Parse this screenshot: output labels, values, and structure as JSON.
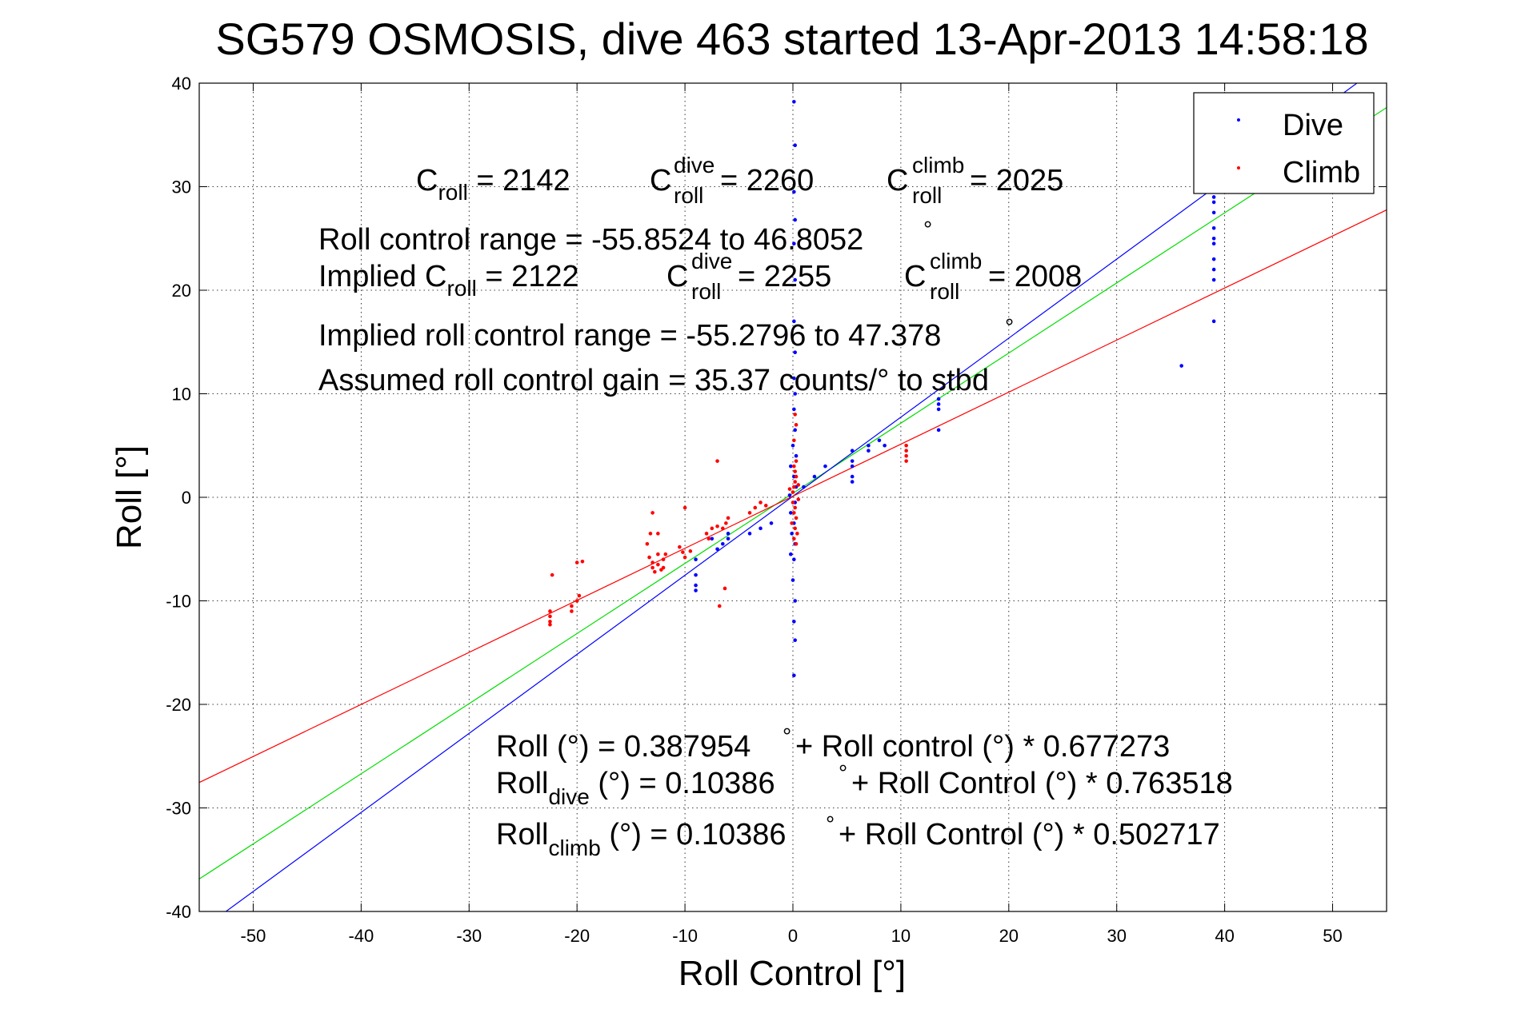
{
  "chart_data": {
    "type": "scatter",
    "title": "SG579 OSMOSIS, dive 463 started 13-Apr-2013 14:58:18",
    "xlabel": "Roll Control [°]",
    "ylabel": "Roll [°]",
    "xlim": [
      -55,
      55
    ],
    "ylim": [
      -40,
      40
    ],
    "xticks": [
      -50,
      -40,
      -30,
      -20,
      -10,
      0,
      10,
      20,
      30,
      40,
      50
    ],
    "yticks": [
      -40,
      -30,
      -20,
      -10,
      0,
      10,
      20,
      30,
      40
    ],
    "grid": true,
    "legend": {
      "position": "top-right",
      "entries": [
        "Dive",
        "Climb"
      ]
    },
    "colors": {
      "dive": "#0000ff",
      "climb": "#ff0000",
      "fit_all": "#00dd00"
    },
    "series": [
      {
        "name": "Dive",
        "color": "#0000ff",
        "points": [
          [
            0.1,
            38.2
          ],
          [
            0.2,
            34.0
          ],
          [
            0.1,
            29.5
          ],
          [
            0.2,
            26.8
          ],
          [
            0.1,
            24.5
          ],
          [
            0.2,
            21.0
          ],
          [
            0.1,
            17.0
          ],
          [
            0.2,
            14.0
          ],
          [
            0.1,
            11.5
          ],
          [
            0.2,
            10.0
          ],
          [
            0.1,
            8.5
          ],
          [
            0.2,
            6.5
          ],
          [
            0.0,
            5.0
          ],
          [
            0.3,
            4.0
          ],
          [
            -0.2,
            3.0
          ],
          [
            0.1,
            2.0
          ],
          [
            0.3,
            1.0
          ],
          [
            -0.3,
            0.2
          ],
          [
            0.2,
            -0.5
          ],
          [
            -0.2,
            -1.5
          ],
          [
            0.1,
            -2.5
          ],
          [
            -0.1,
            -3.5
          ],
          [
            0.2,
            -4.5
          ],
          [
            -0.2,
            -5.5
          ],
          [
            0.1,
            -6.0
          ],
          [
            0.0,
            -8.0
          ],
          [
            0.2,
            -10.0
          ],
          [
            0.1,
            -12.0
          ],
          [
            0.2,
            -13.8
          ],
          [
            0.1,
            -17.2
          ],
          [
            -9.0,
            -6.0
          ],
          [
            -9.0,
            -7.5
          ],
          [
            -9.0,
            -8.5
          ],
          [
            -9.0,
            -9.0
          ],
          [
            -7.5,
            -4.0
          ],
          [
            -7.0,
            -5.0
          ],
          [
            -6.5,
            -4.5
          ],
          [
            -6.0,
            -3.5
          ],
          [
            -6.0,
            -4.0
          ],
          [
            -4.0,
            -3.5
          ],
          [
            -3.0,
            -3.0
          ],
          [
            -2.0,
            -2.5
          ],
          [
            1.0,
            1.0
          ],
          [
            2.0,
            2.0
          ],
          [
            3.0,
            3.0
          ],
          [
            5.5,
            3.5
          ],
          [
            5.5,
            4.5
          ],
          [
            5.5,
            2.0
          ],
          [
            5.5,
            3.0
          ],
          [
            5.5,
            1.5
          ],
          [
            7.0,
            4.5
          ],
          [
            7.0,
            5.0
          ],
          [
            8.0,
            5.5
          ],
          [
            8.5,
            5.0
          ],
          [
            13.5,
            8.5
          ],
          [
            13.5,
            9.0
          ],
          [
            13.5,
            9.5
          ],
          [
            13.5,
            6.5
          ],
          [
            36.0,
            12.7
          ],
          [
            39.0,
            17.0
          ],
          [
            39.0,
            21.0
          ],
          [
            39.0,
            22.0
          ],
          [
            39.0,
            23.0
          ],
          [
            39.0,
            24.5
          ],
          [
            39.0,
            25.0
          ],
          [
            39.0,
            26.0
          ],
          [
            39.0,
            27.5
          ],
          [
            39.0,
            28.5
          ],
          [
            39.0,
            29.0
          ],
          [
            39.0,
            31.0
          ]
        ]
      },
      {
        "name": "Climb",
        "color": "#ff0000",
        "points": [
          [
            -22.5,
            -11.0
          ],
          [
            -22.5,
            -11.5
          ],
          [
            -22.5,
            -12.0
          ],
          [
            -22.5,
            -12.3
          ],
          [
            -22.3,
            -7.5
          ],
          [
            -20.5,
            -10.5
          ],
          [
            -20.5,
            -11.0
          ],
          [
            -20.0,
            -10.0
          ],
          [
            -19.8,
            -9.5
          ],
          [
            -20.0,
            -6.3
          ],
          [
            -19.5,
            -6.2
          ],
          [
            -13.3,
            -5.8
          ],
          [
            -13.0,
            -6.3
          ],
          [
            -13.0,
            -6.8
          ],
          [
            -12.8,
            -7.2
          ],
          [
            -12.5,
            -5.5
          ],
          [
            -12.5,
            -6.5
          ],
          [
            -12.2,
            -7.0
          ],
          [
            -12.0,
            -6.0
          ],
          [
            -12.0,
            -6.8
          ],
          [
            -11.8,
            -5.5
          ],
          [
            -13.5,
            -4.5
          ],
          [
            -13.2,
            -3.5
          ],
          [
            -12.5,
            -3.5
          ],
          [
            -13.0,
            -1.5
          ],
          [
            -10.5,
            -4.8
          ],
          [
            -10.2,
            -5.3
          ],
          [
            -10.0,
            -5.8
          ],
          [
            -9.5,
            -5.2
          ],
          [
            -10.0,
            -1.0
          ],
          [
            -8.0,
            -3.5
          ],
          [
            -7.8,
            -4.0
          ],
          [
            -7.5,
            -3.0
          ],
          [
            -7.0,
            -2.8
          ],
          [
            -6.5,
            -3.0
          ],
          [
            -6.2,
            -2.5
          ],
          [
            -6.0,
            -2.0
          ],
          [
            -6.3,
            -8.8
          ],
          [
            -6.8,
            -10.5
          ],
          [
            -7.0,
            3.5
          ],
          [
            -4.0,
            -1.5
          ],
          [
            -3.5,
            -1.0
          ],
          [
            -3.0,
            -0.5
          ],
          [
            -2.5,
            -0.8
          ],
          [
            0.0,
            0.5
          ],
          [
            0.1,
            1.0
          ],
          [
            0.2,
            1.5
          ],
          [
            0.3,
            2.0
          ],
          [
            0.2,
            2.5
          ],
          [
            0.1,
            3.0
          ],
          [
            0.3,
            3.5
          ],
          [
            0.0,
            -0.5
          ],
          [
            0.2,
            -1.0
          ],
          [
            0.1,
            -1.5
          ],
          [
            0.3,
            -2.0
          ],
          [
            -0.1,
            -2.5
          ],
          [
            0.2,
            -3.0
          ],
          [
            0.4,
            -3.5
          ],
          [
            0.1,
            -4.0
          ],
          [
            0.3,
            -4.5
          ],
          [
            0.2,
            8.0
          ],
          [
            0.3,
            7.0
          ],
          [
            0.1,
            5.5
          ],
          [
            0.5,
            1.2
          ],
          [
            0.5,
            -0.2
          ],
          [
            -0.3,
            0.8
          ],
          [
            10.5,
            4.0
          ],
          [
            10.5,
            4.5
          ],
          [
            10.5,
            5.0
          ],
          [
            10.5,
            3.5
          ]
        ]
      }
    ],
    "fit_lines": [
      {
        "label": "all",
        "color": "#00dd00",
        "intercept": 0.387954,
        "slope": 0.677273
      },
      {
        "label": "dive",
        "color": "#0000ff",
        "intercept": 0.10386,
        "slope": 0.763518
      },
      {
        "label": "climb",
        "color": "#ff0000",
        "intercept": 0.10386,
        "slope": 0.502717
      }
    ],
    "annotations": {
      "line1": [
        {
          "main": "C",
          "sub": "roll",
          "rest": " = 2142"
        },
        {
          "main": "C",
          "sub": "roll",
          "sup": "dive",
          "rest": " = 2260"
        },
        {
          "main": "C",
          "sub": "roll",
          "sup": "climb",
          "rest": " = 2025"
        }
      ],
      "range": "Roll control range = -55.8524 to 46.8052",
      "degree_mark": "°",
      "implied_line": [
        {
          "main": "Implied C",
          "sub": "roll",
          "rest": " = 2122"
        },
        {
          "main": "C",
          "sub": "roll",
          "sup": "dive",
          "rest": " = 2255"
        },
        {
          "main": "C",
          "sub": "roll",
          "sup": "climb",
          "rest": " = 2008"
        }
      ],
      "implied_range": "Implied roll control range = -55.2796 to 47.378",
      "gain": "Assumed roll control gain = 35.37 counts/° to stbd",
      "fit_all": {
        "main": "Roll (°) = 0.387954 ",
        "rest": " + Roll control (°) * 0.677273"
      },
      "fit_dive": {
        "main": "Roll",
        "sub": "dive",
        "mid": " (°) = 0.10386 ",
        "rest": " + Roll Control (°) * 0.763518"
      },
      "fit_climb": {
        "main": "Roll",
        "sub": "climb",
        "mid": " (°) = 0.10386 ",
        "rest": " + Roll Control (°) * 0.502717"
      }
    }
  }
}
